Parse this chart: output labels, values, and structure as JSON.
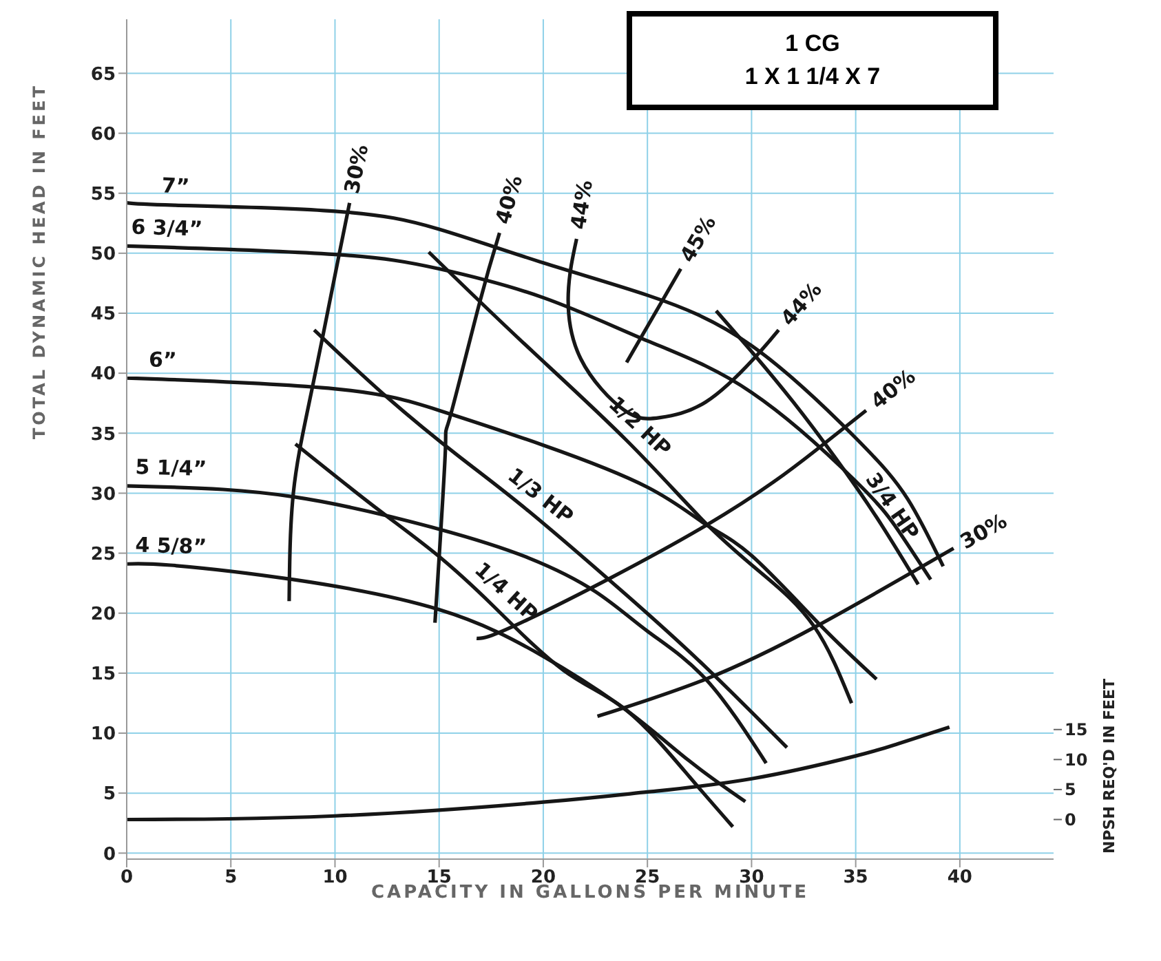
{
  "chart_data": {
    "type": "line",
    "title": "1 CG",
    "subtitle": "1 X 1 1/4 X 7",
    "xlabel": "CAPACITY IN GALLONS PER MINUTE",
    "ylabel": "TOTAL DYNAMIC HEAD IN FEET",
    "y2label": "NPSH REQ'D IN FEET",
    "xlim": [
      0,
      44.5
    ],
    "xticks": [
      0,
      5,
      10,
      15,
      20,
      25,
      30,
      35,
      40
    ],
    "ylim": [
      -0.5,
      69.5
    ],
    "yticks": [
      0,
      5,
      10,
      15,
      20,
      25,
      30,
      35,
      40,
      45,
      50,
      55,
      60,
      65
    ],
    "y2lim": [
      -6.6,
      133.4
    ],
    "y2ticks": [
      0,
      5,
      10,
      15
    ],
    "grid": true,
    "series": [
      {
        "color": "#161616",
        "x": [
          0,
          2.3,
          10,
          15,
          20,
          25,
          30,
          35,
          37.5,
          39.2
        ],
        "values": [
          54.2,
          54,
          53.5,
          52,
          49.2,
          46.5,
          42.3,
          34.6,
          29.5,
          23.9
        ]
      },
      {
        "color": "#161616",
        "x": [
          0,
          1.9,
          10,
          15,
          20,
          25,
          30,
          35,
          37,
          38.6
        ],
        "values": [
          50.6,
          50.5,
          49.9,
          48.7,
          46.3,
          42.7,
          38.4,
          31,
          27,
          22.8
        ]
      },
      {
        "color": "#161616",
        "x": [
          0,
          1.7,
          10,
          15,
          20,
          25,
          27.8,
          30,
          33.3,
          36
        ],
        "values": [
          39.6,
          39.5,
          38.7,
          36.9,
          34,
          30.5,
          27.4,
          24.8,
          19,
          14.5
        ]
      },
      {
        "color": "#161616",
        "x": [
          0,
          2.1,
          8,
          15,
          19.3,
          22.5,
          25,
          27.8,
          30.7
        ],
        "values": [
          30.6,
          30.5,
          29.7,
          27,
          24.6,
          21.8,
          18.5,
          14.5,
          7.5
        ]
      },
      {
        "color": "#161616",
        "x": [
          0,
          2.1,
          8,
          15,
          20,
          24,
          27,
          29.7
        ],
        "values": [
          24.1,
          24,
          22.8,
          20.3,
          16.4,
          11.9,
          7.7,
          4.3
        ]
      },
      {
        "color": "#161616",
        "x": [
          8.1,
          11.8,
          14.8,
          17.6,
          21,
          24,
          27,
          29.1
        ],
        "values": [
          34.1,
          29,
          25,
          20.6,
          15.2,
          11.9,
          6.4,
          2.2
        ]
      },
      {
        "color": "#161616",
        "x": [
          9,
          12.5,
          16,
          19.3,
          24,
          27.8,
          31.7
        ],
        "values": [
          43.6,
          38,
          33,
          28.5,
          21.5,
          15.5,
          8.8
        ]
      },
      {
        "color": "#161616",
        "x": [
          14.5,
          19,
          24,
          27.8,
          30.5,
          33,
          34.8
        ],
        "values": [
          50.1,
          42.6,
          34.4,
          27.5,
          23.3,
          18.9,
          12.5
        ]
      },
      {
        "color": "#161616",
        "x": [
          28.3,
          30.1,
          32,
          34,
          36,
          38
        ],
        "values": [
          45.2,
          41.6,
          37.6,
          33,
          28,
          22.4
        ]
      },
      {
        "color": "#161616",
        "x": [
          7.8,
          8,
          8.9,
          10.2,
          10.7
        ],
        "values": [
          21,
          30,
          38.7,
          49.9,
          54.2
        ]
      },
      {
        "color": "#161616",
        "x": [
          14.8,
          15.3,
          15.5,
          16.9,
          17.9
        ],
        "values": [
          19.2,
          33.6,
          36.2,
          45.6,
          51.7
        ]
      },
      {
        "color": "#161616",
        "x": [
          21.6,
          21.2,
          21.8,
          23.9,
          25.6,
          27.8,
          30.1,
          31.3
        ],
        "values": [
          51.2,
          46.6,
          41.2,
          36.9,
          36.3,
          37.6,
          41.2,
          43.6
        ]
      },
      {
        "color": "#161616",
        "x": [
          24,
          26.6
        ],
        "values": [
          40.9,
          48.7
        ]
      },
      {
        "color": "#161616",
        "x": [
          16.8,
          19.3,
          27.8,
          33.1,
          35.5
        ],
        "values": [
          17.9,
          19.5,
          27.3,
          33.6,
          36.9
        ]
      },
      {
        "color": "#161616",
        "x": [
          22.6,
          27.8,
          33.1,
          39.7
        ],
        "values": [
          11.4,
          14.5,
          18.9,
          25.4
        ]
      },
      {
        "color": "#161616",
        "axis": "y2",
        "x": [
          0,
          10,
          20,
          25,
          30,
          35,
          37,
          39.5
        ],
        "values": [
          0,
          0.6,
          2.9,
          4.6,
          6.8,
          10.6,
          12.6,
          15.4
        ]
      }
    ],
    "annotations": [
      {
        "text": "7”",
        "x": 2.3,
        "y": 54
      },
      {
        "text": "6 3/4”",
        "x": 1.9,
        "y": 50.5
      },
      {
        "text": "6”",
        "x": 1.7,
        "y": 39.5
      },
      {
        "text": "5 1/4”",
        "x": 2.1,
        "y": 30.5
      },
      {
        "text": "4 5/8”",
        "x": 2.1,
        "y": 24
      },
      {
        "text": "30%",
        "x": 10.7,
        "y": 54.2
      },
      {
        "text": "40%",
        "x": 17.9,
        "y": 51.7
      },
      {
        "text": "44%",
        "x": 21.6,
        "y": 51.2
      },
      {
        "text": "45%",
        "x": 26.6,
        "y": 48.7
      },
      {
        "text": "44%",
        "x": 31.3,
        "y": 43.6
      },
      {
        "text": "40%",
        "x": 35.5,
        "y": 36.9
      },
      {
        "text": "30%",
        "x": 39.7,
        "y": 25.4
      },
      {
        "text": "1/4 HP",
        "x": 17.6,
        "y": 20.6
      },
      {
        "text": "1/3 HP",
        "x": 19.3,
        "y": 28.5
      },
      {
        "text": "1/2 HP",
        "x": 24,
        "y": 34.4
      },
      {
        "text": "3/4 HP",
        "x": 36,
        "y": 28
      }
    ]
  }
}
